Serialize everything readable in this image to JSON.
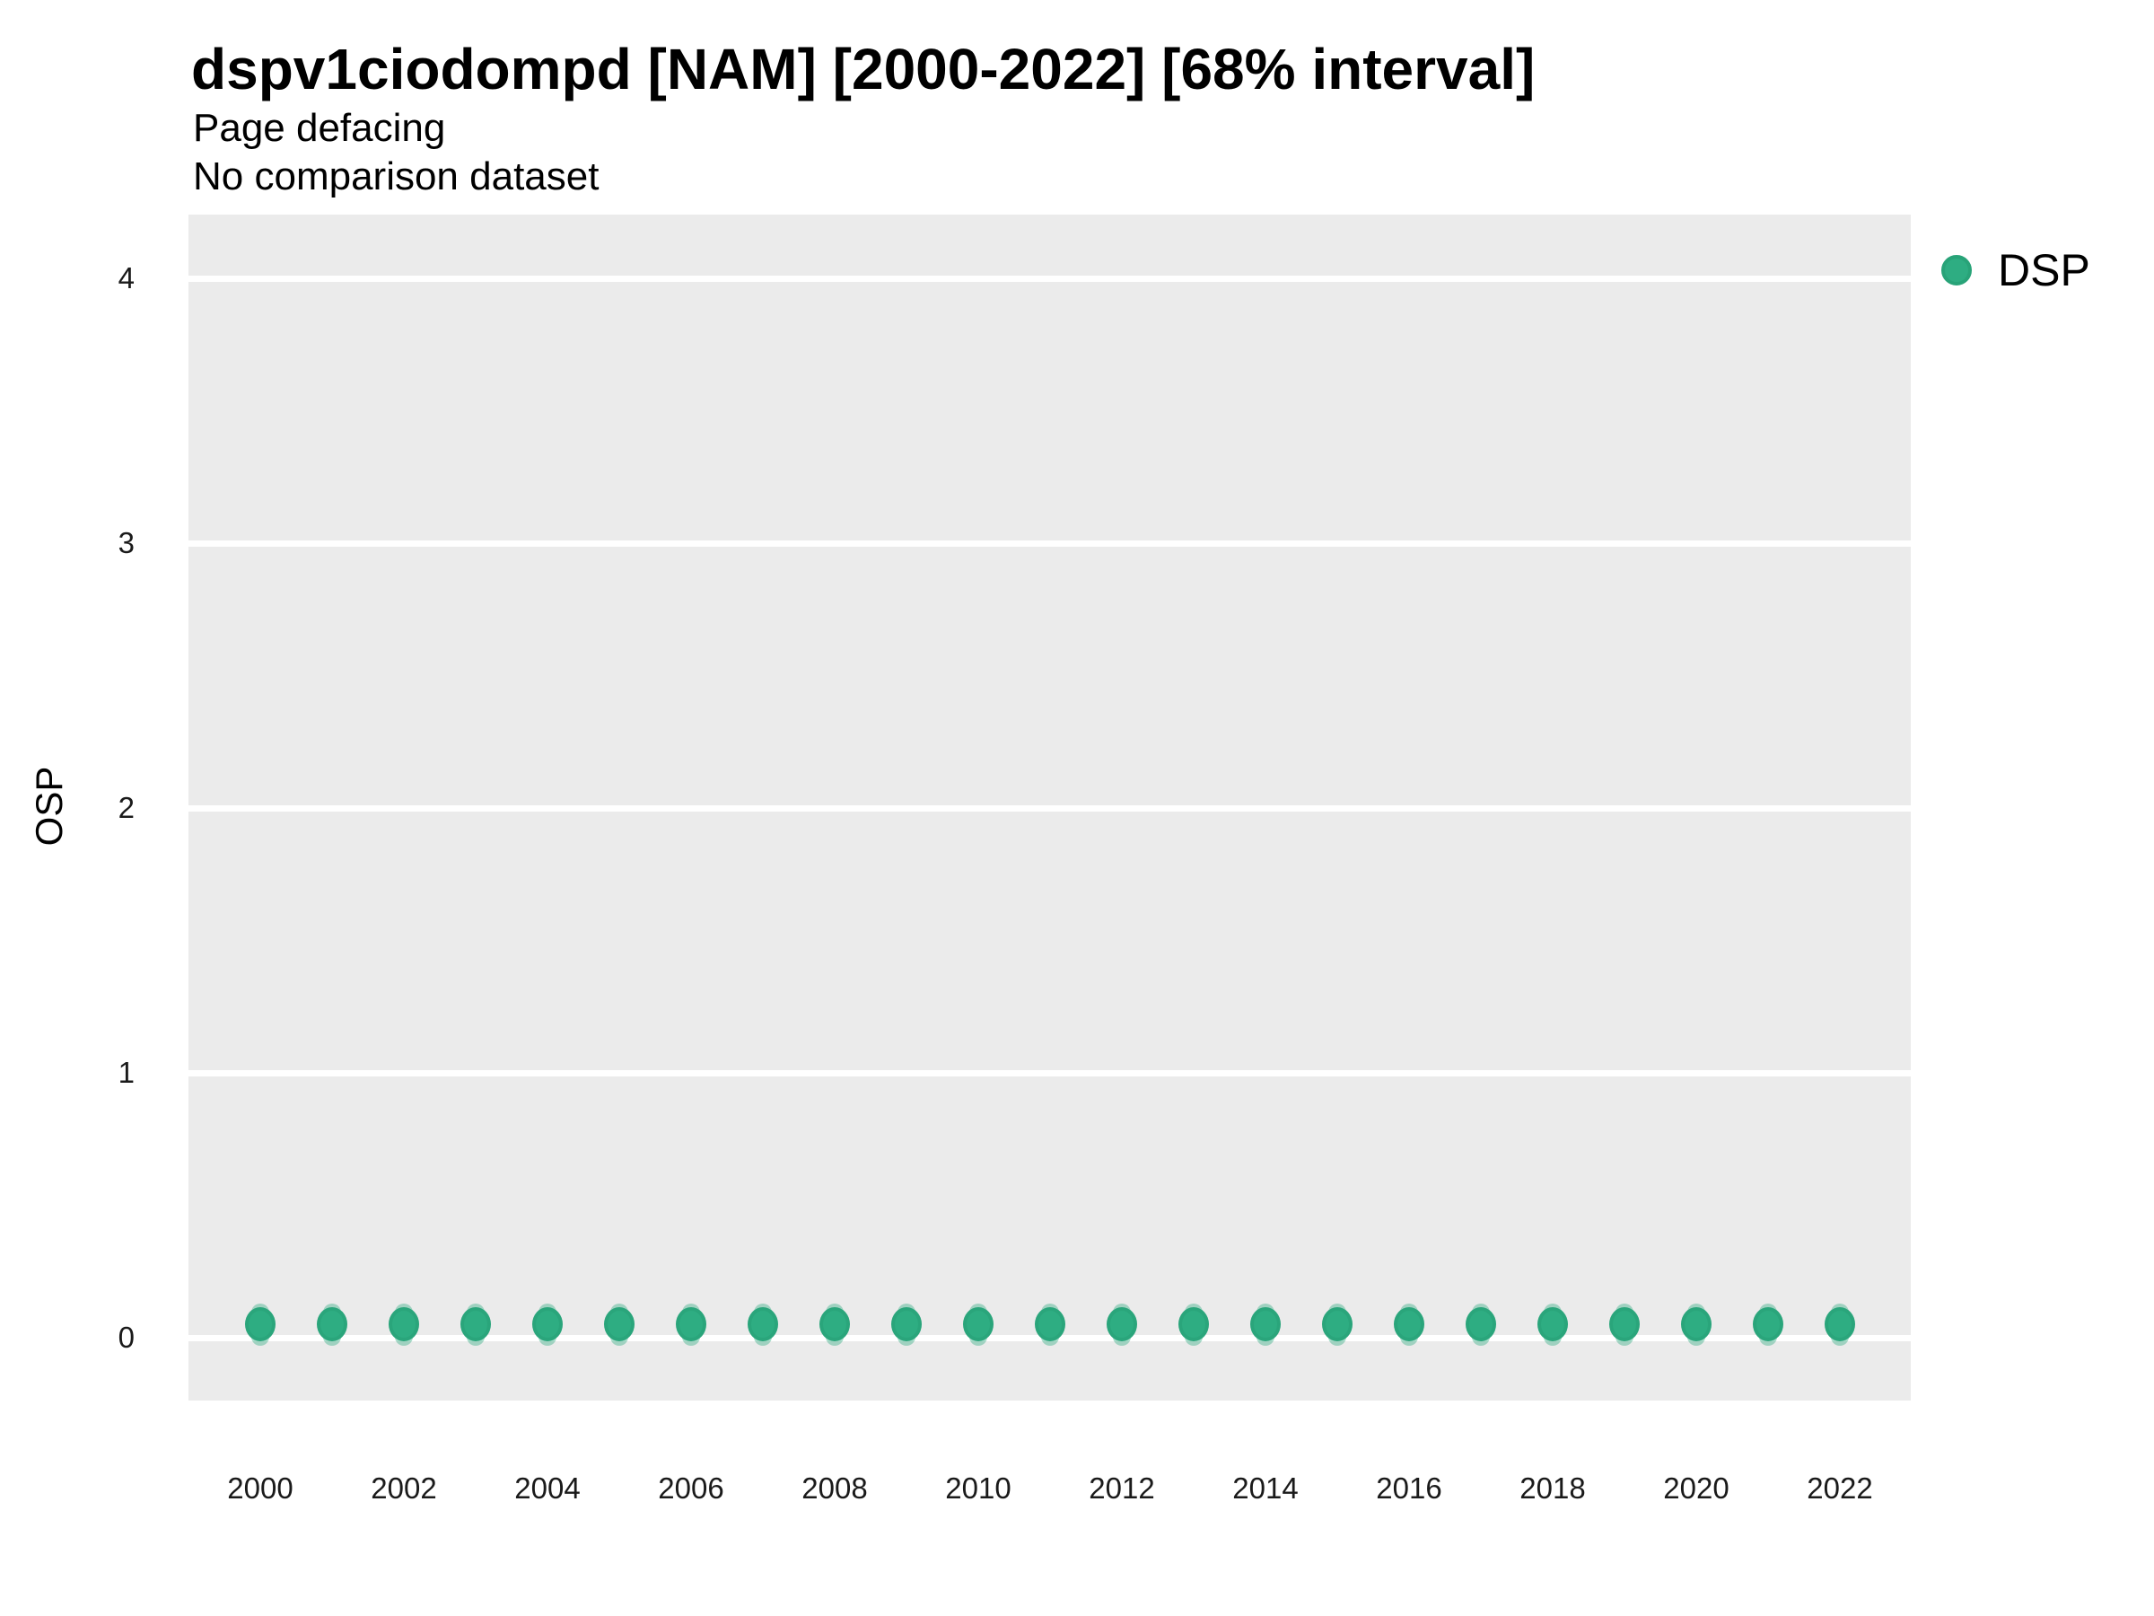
{
  "title": "dspv1ciodompd [NAM] [2000-2022] [68% interval]",
  "subtitle_line1": "Page defacing",
  "subtitle_line2": "No comparison dataset",
  "y_axis": {
    "label": "OSP",
    "tick_labels": [
      "4",
      "3",
      "2",
      "1",
      "0"
    ]
  },
  "x_axis": {
    "tick_labels": [
      "2000",
      "2002",
      "2004",
      "2006",
      "2008",
      "2010",
      "2012",
      "2014",
      "2016",
      "2018",
      "2020",
      "2022"
    ]
  },
  "legend": {
    "items": [
      {
        "label": "DSP",
        "marker": "circle-icon",
        "color": "#2EAD82"
      }
    ]
  },
  "colors": {
    "panel_background": "#EBEBEB",
    "gridline": "#FFFFFF",
    "point_fill": "#2EAD82",
    "point_edge": "#2AA57B",
    "interval_fill": "rgba(46,171,127,0.40)",
    "text": "#000000"
  },
  "chart_data": {
    "type": "scatter",
    "title": "dspv1ciodompd [NAM] [2000-2022] [68% interval]",
    "subtitle": [
      "Page defacing",
      "No comparison dataset"
    ],
    "xlabel": "",
    "ylabel": "OSP",
    "xlim": [
      1999,
      2023
    ],
    "ylim": [
      -0.25,
      4.25
    ],
    "xticks": [
      2000,
      2002,
      2004,
      2006,
      2008,
      2010,
      2012,
      2014,
      2016,
      2018,
      2020,
      2022
    ],
    "yticks": [
      0,
      1,
      2,
      3,
      4
    ],
    "grid": "major horizontal white lines on gray panel",
    "legend_position": "right-top",
    "series": [
      {
        "name": "DSP",
        "x": [
          2000,
          2001,
          2002,
          2003,
          2004,
          2005,
          2006,
          2007,
          2008,
          2009,
          2010,
          2011,
          2012,
          2013,
          2014,
          2015,
          2016,
          2017,
          2018,
          2019,
          2020,
          2021,
          2022
        ],
        "y": [
          0.05,
          0.05,
          0.05,
          0.05,
          0.05,
          0.05,
          0.05,
          0.05,
          0.05,
          0.05,
          0.05,
          0.05,
          0.05,
          0.05,
          0.05,
          0.05,
          0.05,
          0.05,
          0.05,
          0.05,
          0.05,
          0.05,
          0.05
        ],
        "interval_68_low": [
          -0.02,
          -0.02,
          -0.02,
          -0.02,
          -0.02,
          -0.02,
          -0.02,
          -0.02,
          -0.02,
          -0.02,
          -0.02,
          -0.02,
          -0.02,
          -0.02,
          -0.02,
          -0.02,
          -0.02,
          -0.02,
          -0.02,
          -0.02,
          -0.02,
          -0.02,
          -0.02
        ],
        "interval_68_high": [
          0.13,
          0.13,
          0.13,
          0.13,
          0.13,
          0.13,
          0.13,
          0.13,
          0.13,
          0.13,
          0.13,
          0.13,
          0.13,
          0.13,
          0.13,
          0.13,
          0.13,
          0.13,
          0.13,
          0.13,
          0.13,
          0.13,
          0.13
        ]
      }
    ]
  }
}
